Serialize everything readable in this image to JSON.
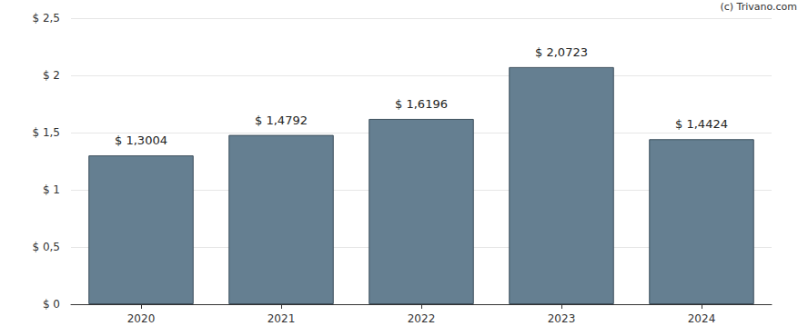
{
  "chart_data": {
    "type": "bar",
    "categories": [
      "2020",
      "2021",
      "2022",
      "2023",
      "2024"
    ],
    "values": [
      1.3004,
      1.4792,
      1.6196,
      2.0723,
      1.4424
    ],
    "value_labels": [
      "$ 1,3004",
      "$ 1,4792",
      "$ 1,6196",
      "$ 2,0723",
      "$ 1,4424"
    ],
    "color": "#657f91",
    "ylim": [
      0,
      2.5
    ],
    "yticks": [
      {
        "value": 0,
        "label": "$ 0"
      },
      {
        "value": 0.5,
        "label": "$ 0,5"
      },
      {
        "value": 1,
        "label": "$ 1"
      },
      {
        "value": 1.5,
        "label": "$ 1,5"
      },
      {
        "value": 2,
        "label": "$ 2"
      },
      {
        "value": 2.5,
        "label": "$ 2,5"
      }
    ],
    "grid": true,
    "data_labels": true,
    "annotations": [
      "(c) Trivano.com"
    ]
  }
}
